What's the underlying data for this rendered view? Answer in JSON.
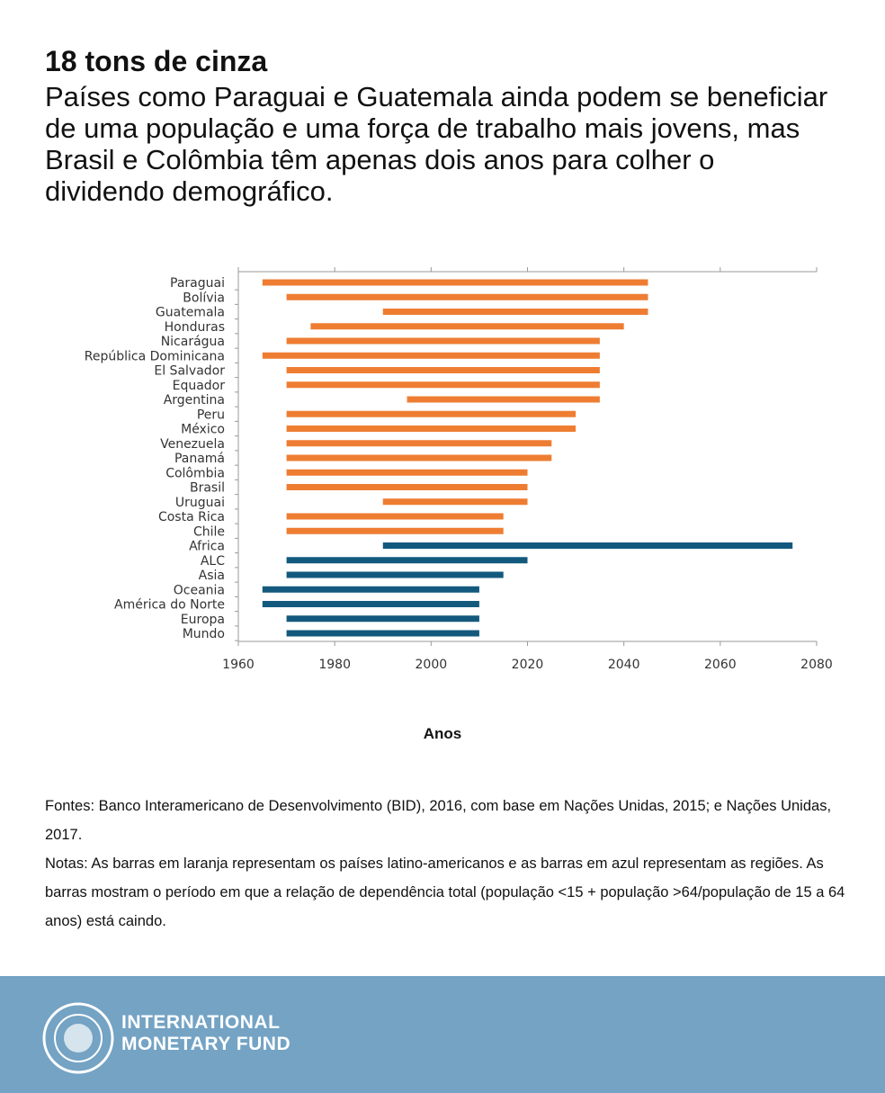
{
  "chart_data": {
    "type": "range-bar",
    "title": "18 tons de cinza",
    "subtitle": "Países como Paraguai e Guatemala ainda podem se beneficiar de uma população e uma força de trabalho mais jovens, mas Brasil e Colômbia têm apenas dois anos para colher o dividendo demográfico.",
    "xlabel": "Anos",
    "xlim": [
      1960,
      2080
    ],
    "xticks": [
      1960,
      1980,
      2000,
      2020,
      2040,
      2060,
      2080
    ],
    "groups": [
      {
        "color": "#ee7d32",
        "categories": [
          "Paraguai",
          "Bolívia",
          "Guatemala",
          "Honduras",
          "Nicarágua",
          "República Dominicana",
          "El Salvador",
          "Equador",
          "Argentina",
          "Peru",
          "México",
          "Venezuela",
          "Panamá",
          "Colômbia",
          "Brasil",
          "Uruguai",
          "Costa Rica",
          "Chile"
        ],
        "start": [
          1965,
          1970,
          1990,
          1975,
          1970,
          1965,
          1970,
          1970,
          1995,
          1970,
          1970,
          1970,
          1970,
          1970,
          1970,
          1990,
          1970,
          1970
        ],
        "end": [
          2045,
          2045,
          2045,
          2040,
          2035,
          2035,
          2035,
          2035,
          2035,
          2030,
          2030,
          2025,
          2025,
          2020,
          2020,
          2020,
          2015,
          2015
        ]
      },
      {
        "color": "#13597e",
        "categories": [
          "Africa",
          "ALC",
          "Asia",
          "Oceania",
          "América do Norte",
          "Europa",
          "Mundo"
        ],
        "start": [
          1990,
          1970,
          1970,
          1965,
          1965,
          1970,
          1970
        ],
        "end": [
          2075,
          2020,
          2015,
          2010,
          2010,
          2010,
          2010
        ]
      }
    ]
  },
  "footer": {
    "sources": "Fontes: Banco Interamericano de Desenvolvimento (BID), 2016, com base em Nações Unidas, 2015; e Nações Unidas, 2017.",
    "notes": "Notas: As barras em laranja representam os países latino-americanos e as barras em azul representam as regiões. As barras mostram o período em que a relação de dependência total (população <15 + população >64/população de 15 a 64 anos) está caindo.",
    "logo": [
      "INTERNATIONAL",
      "MONETARY FUND"
    ]
  }
}
